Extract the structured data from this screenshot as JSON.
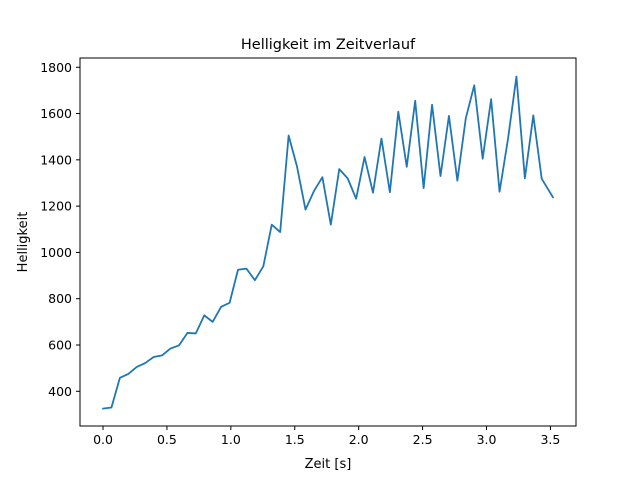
{
  "chart_data": {
    "type": "line",
    "title": "Helligkeit im Zeitverlauf",
    "xlabel": "Zeit [s]",
    "ylabel": "Helligkeit",
    "xlim": [
      -0.18,
      3.7
    ],
    "ylim": [
      250,
      1840
    ],
    "xticks": [
      0.0,
      0.5,
      1.0,
      1.5,
      2.0,
      2.5,
      3.0,
      3.5
    ],
    "xtick_labels": [
      "0.0",
      "0.5",
      "1.0",
      "1.5",
      "2.0",
      "2.5",
      "3.0",
      "3.5"
    ],
    "yticks": [
      400,
      600,
      800,
      1000,
      1200,
      1400,
      1600,
      1800
    ],
    "ytick_labels": [
      "400",
      "600",
      "800",
      "1000",
      "1200",
      "1400",
      "1600",
      "1800"
    ],
    "grid": false,
    "series": [
      {
        "color": "#1f77b4",
        "x": [
          0.0,
          0.066,
          0.132,
          0.198,
          0.264,
          0.33,
          0.396,
          0.462,
          0.528,
          0.594,
          0.66,
          0.726,
          0.792,
          0.858,
          0.924,
          0.99,
          1.056,
          1.122,
          1.188,
          1.254,
          1.32,
          1.386,
          1.452,
          1.518,
          1.584,
          1.65,
          1.716,
          1.782,
          1.848,
          1.914,
          1.98,
          2.046,
          2.112,
          2.178,
          2.244,
          2.31,
          2.376,
          2.442,
          2.508,
          2.574,
          2.64,
          2.706,
          2.772,
          2.838,
          2.904,
          2.97,
          3.036,
          3.102,
          3.168,
          3.234,
          3.3,
          3.366,
          3.432,
          3.52
        ],
        "y": [
          325,
          330,
          458,
          475,
          505,
          522,
          548,
          555,
          585,
          598,
          652,
          650,
          728,
          700,
          765,
          782,
          925,
          930,
          880,
          940,
          1120,
          1088,
          1505,
          1370,
          1185,
          1265,
          1325,
          1120,
          1360,
          1320,
          1232,
          1412,
          1258,
          1492,
          1260,
          1608,
          1370,
          1655,
          1278,
          1638,
          1330,
          1590,
          1310,
          1580,
          1722,
          1405,
          1662,
          1262,
          1490,
          1760,
          1320,
          1592,
          1318,
          1238
        ]
      }
    ]
  }
}
